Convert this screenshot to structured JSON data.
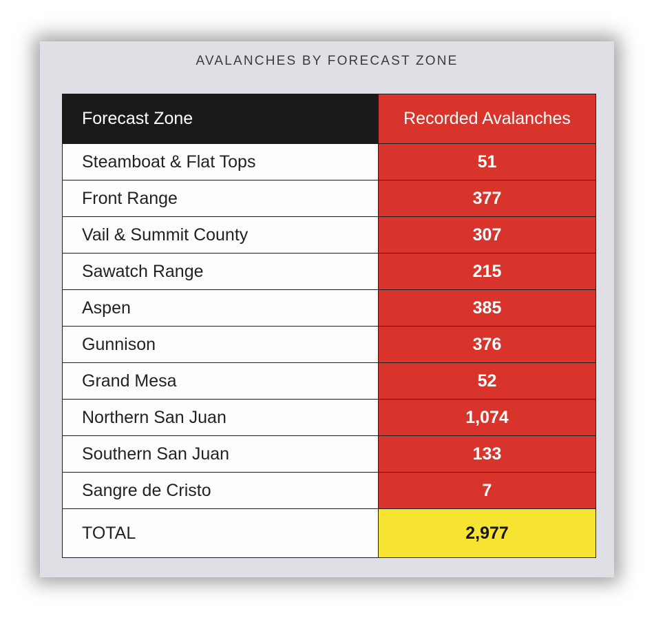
{
  "chart_data": {
    "type": "table",
    "title": "AVALANCHES BY FORECAST ZONE",
    "columns": [
      "Forecast Zone",
      "Recorded Avalanches"
    ],
    "rows": [
      {
        "zone": "Steamboat & Flat Tops",
        "count": "51",
        "value": 51
      },
      {
        "zone": "Front Range",
        "count": "377",
        "value": 377
      },
      {
        "zone": "Vail & Summit County",
        "count": "307",
        "value": 307
      },
      {
        "zone": "Sawatch Range",
        "count": "215",
        "value": 215
      },
      {
        "zone": "Aspen",
        "count": "385",
        "value": 385
      },
      {
        "zone": "Gunnison",
        "count": "376",
        "value": 376
      },
      {
        "zone": "Grand Mesa",
        "count": "52",
        "value": 52
      },
      {
        "zone": "Northern San Juan",
        "count": "1,074",
        "value": 1074
      },
      {
        "zone": "Southern San Juan",
        "count": "133",
        "value": 133
      },
      {
        "zone": "Sangre de Cristo",
        "count": "7",
        "value": 7
      }
    ],
    "total": {
      "label": "TOTAL",
      "count": "2,977",
      "value": 2977
    }
  },
  "colors": {
    "header_dark": "#1b191a",
    "accent_red": "#d9342b",
    "total_yellow": "#f7e332",
    "card_background": "#dfe0e6"
  }
}
